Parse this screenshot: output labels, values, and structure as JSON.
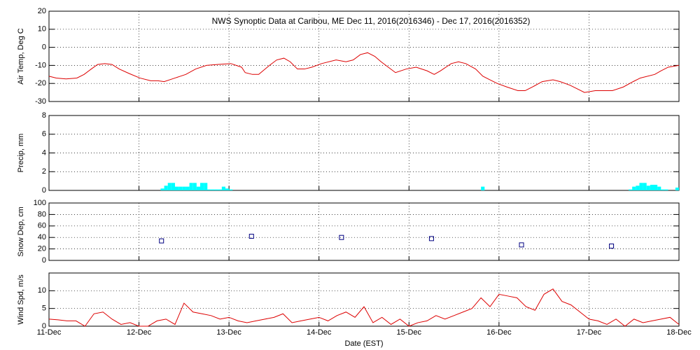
{
  "chart_data": [
    {
      "type": "line",
      "title": "NWS Synoptic Data at Caribou, ME   Dec 11, 2016(2016346) - Dec 17, 2016(2016352)",
      "y_label": "Air Temp, Deg C",
      "color": "#dd0000",
      "ylim": [
        -30,
        20
      ],
      "yticks": [
        -30,
        -20,
        -10,
        0,
        10,
        20
      ],
      "grid": true,
      "x": [
        0,
        0.08,
        0.19,
        0.31,
        0.39,
        0.47,
        0.54,
        0.62,
        0.7,
        0.78,
        0.89,
        1.01,
        1.13,
        1.21,
        1.28,
        1.4,
        1.52,
        1.63,
        1.75,
        1.87,
        2.02,
        2.14,
        2.18,
        2.26,
        2.33,
        2.45,
        2.53,
        2.61,
        2.68,
        2.76,
        2.84,
        2.92,
        3.03,
        3.19,
        3.3,
        3.38,
        3.46,
        3.54,
        3.62,
        3.69,
        3.77,
        3.85,
        3.97,
        4.08,
        4.2,
        4.28,
        4.35,
        4.47,
        4.55,
        4.63,
        4.74,
        4.82,
        4.9,
        4.98,
        5.09,
        5.21,
        5.29,
        5.37,
        5.48,
        5.6,
        5.68,
        5.79,
        5.87,
        5.95,
        6.07,
        6.26,
        6.38,
        6.49,
        6.57,
        6.73,
        6.8,
        6.88,
        7.0
      ],
      "values": [
        -16,
        -17,
        -17.5,
        -17,
        -15,
        -12,
        -9.5,
        -9,
        -9.5,
        -12,
        -14.5,
        -17,
        -18.5,
        -18.5,
        -19,
        -17,
        -15,
        -12,
        -10,
        -9.5,
        -9,
        -11,
        -14,
        -15,
        -15,
        -10,
        -7,
        -6,
        -8,
        -12,
        -12,
        -11,
        -9,
        -7,
        -8,
        -7,
        -4,
        -3,
        -5,
        -8,
        -11,
        -14,
        -12,
        -11,
        -13,
        -15,
        -13,
        -9,
        -8,
        -9,
        -12,
        -16,
        -18,
        -20,
        -22,
        -24,
        -24,
        -22,
        -19,
        -18,
        -19,
        -21,
        -23,
        -25,
        -24,
        -24,
        -22,
        -19,
        -17,
        -15,
        -13,
        -11,
        -10
      ]
    },
    {
      "type": "bar",
      "y_label": "Precip, mm",
      "color": "#00ffff",
      "ylim": [
        0,
        8
      ],
      "yticks": [
        0,
        2,
        4,
        6,
        8
      ],
      "grid": true,
      "x": [
        1.26,
        1.3,
        1.34,
        1.38,
        1.42,
        1.46,
        1.5,
        1.54,
        1.58,
        1.62,
        1.66,
        1.7,
        1.74,
        1.78,
        1.82,
        1.86,
        1.9,
        1.94,
        1.98,
        2.02,
        4.82,
        6.46,
        6.5,
        6.54,
        6.58,
        6.62,
        6.66,
        6.7,
        6.74,
        6.78,
        6.82,
        6.86,
        6.98
      ],
      "values": [
        0.2,
        0.5,
        0.8,
        0.8,
        0.4,
        0.4,
        0.4,
        0.4,
        0.8,
        0.8,
        0.4,
        0.8,
        0.8,
        0.1,
        0.1,
        0.1,
        0.1,
        0.4,
        0.2,
        0.1,
        0.4,
        0.1,
        0.4,
        0.5,
        0.8,
        0.8,
        0.5,
        0.6,
        0.6,
        0.4,
        0.1,
        0.1,
        0.3
      ]
    },
    {
      "type": "scatter",
      "y_label": "Snow Dep, cm",
      "color": "#000080",
      "ylim": [
        0,
        100
      ],
      "yticks": [
        0,
        20,
        40,
        60,
        80,
        100
      ],
      "grid": true,
      "x": [
        1.25,
        2.25,
        3.25,
        4.25,
        5.25,
        6.25
      ],
      "values": [
        34,
        42,
        40,
        38,
        27,
        25
      ]
    },
    {
      "type": "line",
      "y_label": "Wind Spd, m/s",
      "x_label": "Date (EST)",
      "color": "#dd0000",
      "ylim": [
        0,
        15
      ],
      "yticks": [
        0,
        5,
        10
      ],
      "grid": true,
      "xlim": [
        0,
        7
      ],
      "xticks": [
        {
          "value": 0,
          "label": "11-Dec"
        },
        {
          "value": 1,
          "label": "12-Dec"
        },
        {
          "value": 2,
          "label": "13-Dec"
        },
        {
          "value": 3,
          "label": "14-Dec"
        },
        {
          "value": 4,
          "label": "15-Dec"
        },
        {
          "value": 5,
          "label": "16-Dec"
        },
        {
          "value": 6,
          "label": "17-Dec"
        },
        {
          "value": 7,
          "label": "18-Dec"
        }
      ],
      "x": [
        0,
        0.1,
        0.2,
        0.3,
        0.4,
        0.5,
        0.6,
        0.7,
        0.8,
        0.9,
        1.0,
        1.1,
        1.2,
        1.3,
        1.4,
        1.5,
        1.6,
        1.7,
        1.8,
        1.9,
        2.0,
        2.1,
        2.2,
        2.3,
        2.4,
        2.5,
        2.6,
        2.7,
        2.8,
        2.9,
        3.0,
        3.1,
        3.2,
        3.3,
        3.4,
        3.5,
        3.6,
        3.7,
        3.8,
        3.9,
        4.0,
        4.1,
        4.2,
        4.3,
        4.4,
        4.5,
        4.6,
        4.7,
        4.8,
        4.9,
        5.0,
        5.1,
        5.2,
        5.3,
        5.4,
        5.5,
        5.6,
        5.7,
        5.8,
        5.9,
        6.0,
        6.1,
        6.2,
        6.3,
        6.4,
        6.5,
        6.6,
        6.7,
        6.8,
        6.9,
        7.0
      ],
      "values": [
        2,
        1.8,
        1.5,
        1.5,
        0,
        3.5,
        4,
        2,
        0.5,
        1,
        0,
        0,
        1.5,
        2,
        0.5,
        6.5,
        4,
        3.5,
        3,
        2,
        2.5,
        1.5,
        1,
        1.5,
        2,
        2.5,
        3.5,
        1,
        1.5,
        2,
        2.5,
        1.5,
        3,
        4,
        2.5,
        5.5,
        1,
        2.5,
        0.5,
        2,
        0,
        1,
        1.5,
        3,
        2,
        3,
        4,
        5,
        8,
        5.5,
        9,
        8.5,
        8,
        5.5,
        4.5,
        9,
        10.5,
        7,
        6,
        4,
        2,
        1.5,
        0.5,
        2,
        0,
        2,
        1,
        1.5,
        2,
        2.5,
        0.5
      ]
    }
  ]
}
